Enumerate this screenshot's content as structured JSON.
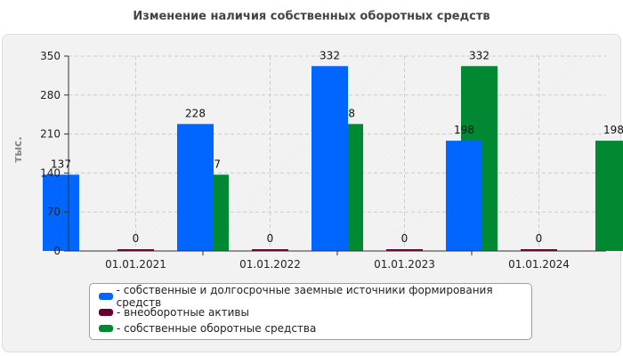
{
  "title": "Изменение наличия собственных оборотных средств",
  "chart_data": {
    "type": "bar",
    "categories": [
      "01.01.2021",
      "01.01.2022",
      "01.01.2023",
      "01.01.2024"
    ],
    "series": [
      {
        "name": "- собственные и долгосрочные заемные источники формирования средств",
        "color": "#0066ff",
        "values": [
          137,
          228,
          332,
          198
        ]
      },
      {
        "name": "- внеоборотные активы",
        "color": "#660033",
        "values": [
          0,
          0,
          0,
          0
        ]
      },
      {
        "name": "- собственные оборотные средства",
        "color": "#008833",
        "values": [
          137,
          228,
          332,
          198
        ]
      }
    ],
    "ylabel": "тыс.",
    "ylim": [
      0,
      350
    ],
    "yticks": [
      0,
      70,
      140,
      210,
      280,
      350
    ],
    "grid": true,
    "legend_position": "bottom"
  }
}
